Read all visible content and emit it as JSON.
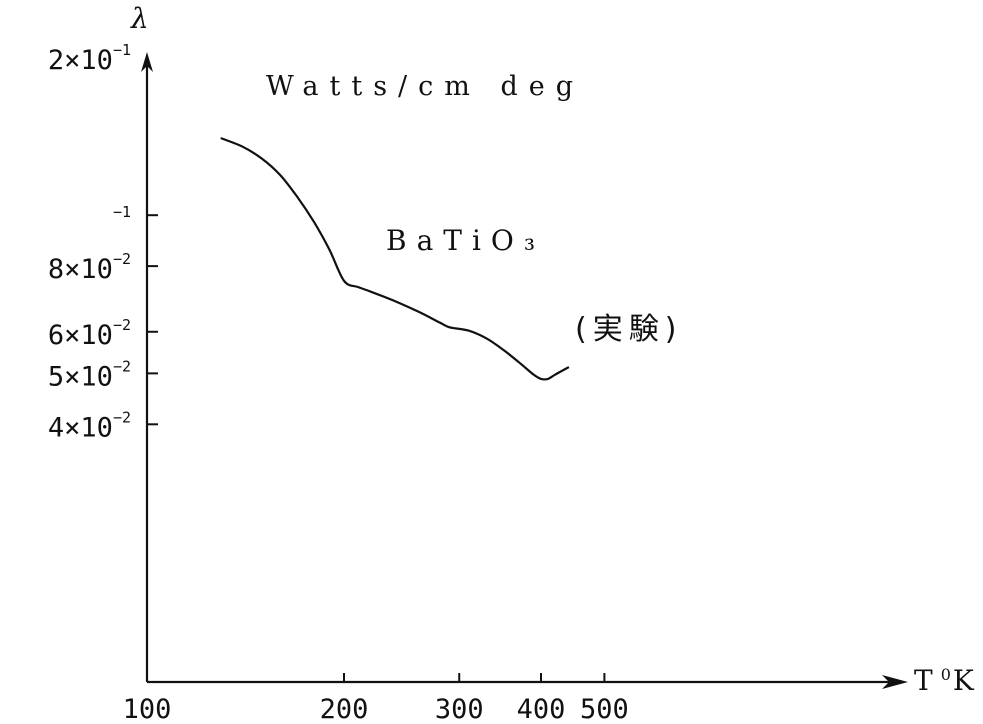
{
  "chart_data": {
    "type": "line",
    "x_scale": "log",
    "y_scale": "log",
    "xlim": [
      100,
      800
    ],
    "ylim": [
      0.03,
      0.2
    ],
    "x_ticks": [
      {
        "value": 100,
        "label": "100"
      },
      {
        "value": 200,
        "label": "200"
      },
      {
        "value": 300,
        "label": "300"
      },
      {
        "value": 400,
        "label": "400"
      },
      {
        "value": 500,
        "label": "500"
      }
    ],
    "y_ticks": [
      {
        "value": 0.2,
        "base": "2×10",
        "exp": "−1"
      },
      {
        "value": 0.1,
        "base": "",
        "exp": "−1"
      },
      {
        "value": 0.08,
        "base": "8×10",
        "exp": "−2"
      },
      {
        "value": 0.06,
        "base": "6×10",
        "exp": "−2"
      },
      {
        "value": 0.05,
        "base": "5×10",
        "exp": "−2"
      },
      {
        "value": 0.04,
        "base": "4×10",
        "exp": "−2"
      }
    ],
    "ylabel": "λ",
    "xlabel": "T",
    "xlabel_sup": "0",
    "xlabel_unit": "K",
    "series": [
      {
        "color": "#111111",
        "x": [
          130,
          140,
          150,
          160,
          170,
          180,
          190,
          200,
          210,
          220,
          240,
          260,
          280,
          290,
          310,
          330,
          350,
          370,
          390,
          400,
          410,
          420,
          440
        ],
        "y": [
          0.14,
          0.135,
          0.128,
          0.119,
          0.108,
          0.097,
          0.086,
          0.075,
          0.073,
          0.0715,
          0.0685,
          0.0655,
          0.0625,
          0.0612,
          0.0603,
          0.0583,
          0.0555,
          0.0525,
          0.0497,
          0.0488,
          0.0488,
          0.0497,
          0.0513
        ]
      }
    ],
    "annotations": [
      {
        "id": "units",
        "text": "Watts/cm deg"
      },
      {
        "id": "material",
        "text": "BaTiO₃"
      },
      {
        "id": "note",
        "text": "(実験)"
      }
    ]
  }
}
